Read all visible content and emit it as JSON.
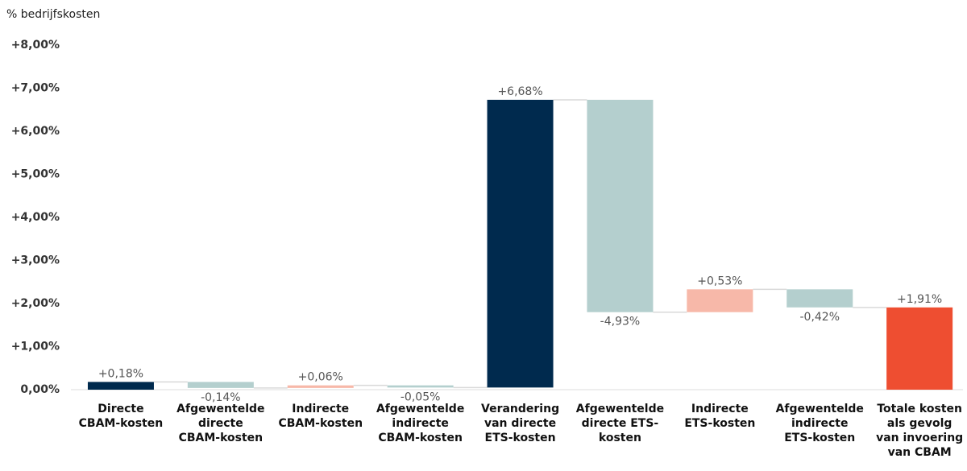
{
  "chart_data": {
    "type": "waterfall",
    "y_label": "% bedrijfskosten",
    "categories": [
      [
        "Directe",
        "CBAM-kosten"
      ],
      [
        "Afgewentelde",
        "directe",
        "CBAM-kosten"
      ],
      [
        "Indirecte",
        "CBAM-kosten"
      ],
      [
        "Afgewentelde",
        "indirecte",
        "CBAM-kosten"
      ],
      [
        "Verandering",
        "van directe",
        "ETS-kosten"
      ],
      [
        "Afgewentelde",
        "directe ETS-",
        "kosten"
      ],
      [
        "Indirecte",
        "ETS-kosten"
      ],
      [
        "Afgewentelde",
        "indirecte",
        "ETS-kosten"
      ],
      [
        "Totale kosten",
        "als gevolg",
        "van invoering",
        "van CBAM"
      ]
    ],
    "values": [
      0.18,
      -0.14,
      0.06,
      -0.05,
      6.68,
      -4.93,
      0.53,
      -0.42,
      1.91
    ],
    "value_labels": [
      "+0,18%",
      "-0,14%",
      "+0,06%",
      "-0,05%",
      "+6,68%",
      "-4,93%",
      "+0,53%",
      "-0,42%",
      "+1,91%"
    ],
    "is_total": [
      false,
      false,
      false,
      false,
      false,
      false,
      false,
      false,
      true
    ],
    "colors": [
      "#002a4e",
      "#b4cfce",
      "#f7b8a9",
      "#b4cfce",
      "#002a4e",
      "#b4cfce",
      "#f7b8a9",
      "#b4cfce",
      "#ee4e31"
    ],
    "ylim": [
      0,
      8
    ],
    "yticks": [
      {
        "value": 0,
        "label": "0,00%"
      },
      {
        "value": 1,
        "label": "+1,00%"
      },
      {
        "value": 2,
        "label": "+2,00%"
      },
      {
        "value": 3,
        "label": "+3,00%"
      },
      {
        "value": 4,
        "label": "+4,00%"
      },
      {
        "value": 5,
        "label": "+5,00%"
      },
      {
        "value": 6,
        "label": "+6,00%"
      },
      {
        "value": 7,
        "label": "+7,00%"
      },
      {
        "value": 8,
        "label": "+8,00%"
      }
    ],
    "grid": false
  }
}
